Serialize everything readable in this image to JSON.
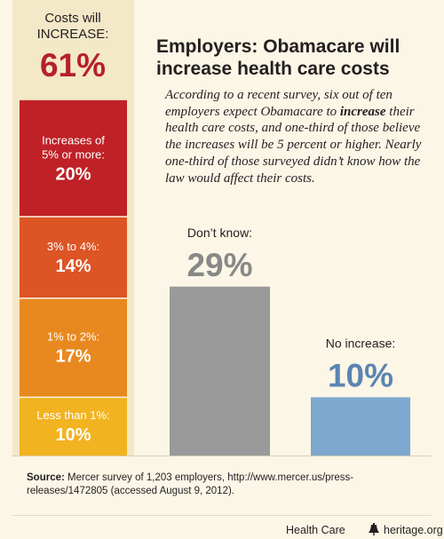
{
  "title": "Employers: Obamacare will increase health care costs",
  "description": {
    "before": "According to a recent survey, six out of ten employers expect Obamacare to ",
    "emphasis": "increase",
    "after": " their health care costs, and one-third of those believe the increases will be 5 percent or higher. Nearly one-third of those surveyed didn’t know how the law would affect their costs."
  },
  "increase_total": {
    "label_line1": "Costs will",
    "label_line2": "INCREASE:",
    "value": "61%"
  },
  "colors": {
    "background": "#fbf6e6",
    "accent": "#b5212a",
    "gray_bar": "#9a9a9a",
    "blue_bar": "#7ea8cf",
    "blue_text": "#5b84b1",
    "gray_text": "#888888"
  },
  "chart_data": {
    "type": "bar",
    "unit": "%",
    "ylim": [
      0,
      61
    ],
    "bars": [
      {
        "name": "increase",
        "stacked": true,
        "segments": [
          {
            "label": "Less than 1%:",
            "value": 10,
            "display": "10%",
            "color": "#f2b320"
          },
          {
            "label": "1% to 2%:",
            "value": 17,
            "display": "17%",
            "color": "#e8891f"
          },
          {
            "label": "3% to 4%:",
            "value": 14,
            "display": "14%",
            "color": "#dd5425"
          },
          {
            "label_lines": [
              "Increases of",
              "5% or more:"
            ],
            "value": 20,
            "display": "20%",
            "color": "#bf2127"
          }
        ]
      },
      {
        "name": "dont-know",
        "label": "Don’t know:",
        "value": 29,
        "display": "29%",
        "color": "#9a9a9a"
      },
      {
        "name": "no-increase",
        "label": "No increase:",
        "value": 10,
        "display": "10%",
        "color": "#7ea8cf"
      }
    ]
  },
  "source": {
    "label": "Source:",
    "text": " Mercer survey of 1,203 employers, http://www.mercer.us/press-releases/1472805 (accessed August 9, 2012)."
  },
  "footer": {
    "topic": "Health Care",
    "site": "heritage.org",
    "logo_icon": "liberty-bell-icon"
  }
}
